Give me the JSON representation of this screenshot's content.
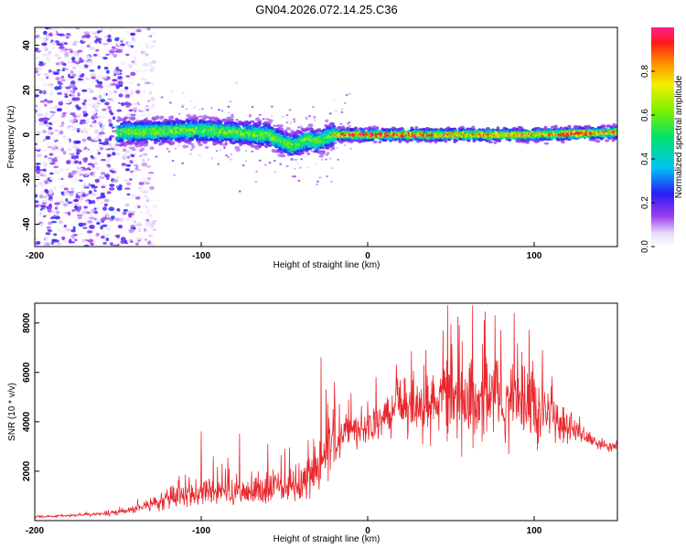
{
  "title": "GN04.2026.072.14.25.C36",
  "colors": {
    "snr_line": "#e8282d",
    "frame": "#000000",
    "background": "#ffffff"
  },
  "chart_data": [
    {
      "type": "heatmap",
      "xlabel": "Height of straight line (km)",
      "ylabel": "Frequency (Hz)",
      "xlim": [
        -200,
        150
      ],
      "ylim": [
        -50,
        48
      ],
      "xticks": [
        -200,
        -100,
        0,
        100
      ],
      "xtick_labels": [
        "-200",
        "-100",
        "0",
        "100"
      ],
      "yticks": [
        -40,
        -20,
        0,
        20,
        40
      ],
      "ytick_labels": [
        "-40",
        "-20",
        "0",
        "20",
        "40"
      ],
      "colorbar": {
        "label": "Normalized spectral amplitude",
        "range": [
          0,
          1
        ],
        "ticks": [
          0.0,
          0.2,
          0.4,
          0.6,
          0.8
        ],
        "tick_labels": [
          "0.0",
          "0.2",
          "0.4",
          "0.6",
          "0.8"
        ],
        "colormap": "rainbow (white-lavender-violet-blue-cyan-green-yellow-orange-red-magenta)"
      },
      "description_series": [
        {
          "name": "broadband noise region",
          "x_range": [
            -200,
            -140
          ],
          "freq_range": [
            -50,
            48
          ],
          "amplitude": [
            0.0,
            0.25
          ]
        },
        {
          "name": "spectral ridge",
          "x_range": [
            -150,
            150
          ],
          "center_freq": [
            [
              -150,
              1
            ],
            [
              -100,
              2
            ],
            [
              -60,
              0
            ],
            [
              -45,
              -5
            ],
            [
              -35,
              -2
            ],
            [
              -30,
              -3
            ],
            [
              -20,
              0
            ],
            [
              0,
              0
            ],
            [
              50,
              0
            ],
            [
              100,
              0
            ],
            [
              150,
              1
            ]
          ],
          "amplitude_range": [
            0.3,
            0.95
          ]
        }
      ]
    },
    {
      "type": "line",
      "xlabel": "Height of straight line (km)",
      "ylabel": "SNR (10 * v/v)",
      "xlim": [
        -200,
        150
      ],
      "ylim": [
        0,
        8800
      ],
      "xticks": [
        -200,
        -100,
        0,
        100
      ],
      "xtick_labels": [
        "-200",
        "-100",
        "0",
        "100"
      ],
      "yticks": [
        2000,
        4000,
        6000,
        8000
      ],
      "ytick_labels": [
        "2000",
        "4000",
        "6000",
        "8000"
      ],
      "series": [
        {
          "name": "SNR",
          "envelope_x": [
            -200,
            -180,
            -160,
            -150,
            -140,
            -130,
            -120,
            -110,
            -100,
            -90,
            -80,
            -70,
            -60,
            -50,
            -40,
            -30,
            -25,
            -20,
            -15,
            -10,
            -5,
            0,
            10,
            20,
            30,
            40,
            50,
            60,
            70,
            80,
            90,
            100,
            110,
            120,
            130,
            140,
            150
          ],
          "mean": [
            150,
            200,
            280,
            350,
            450,
            700,
            900,
            1000,
            1100,
            1350,
            1250,
            1200,
            1300,
            1450,
            1500,
            2200,
            3000,
            3300,
            3400,
            3700,
            3800,
            3800,
            4200,
            4700,
            4600,
            4800,
            5000,
            5100,
            4900,
            4800,
            4600,
            4400,
            4300,
            3800,
            3400,
            3100,
            3000
          ],
          "amplitude": [
            80,
            100,
            150,
            200,
            300,
            500,
            700,
            900,
            1100,
            1300,
            1100,
            1000,
            1100,
            1300,
            1400,
            1800,
            2200,
            1800,
            1500,
            1300,
            1400,
            1400,
            1500,
            1800,
            2200,
            2500,
            3000,
            3100,
            3300,
            3300,
            3100,
            2800,
            2000,
            1200,
            700,
            400,
            300
          ],
          "peaks": [
            [
              -100,
              3600
            ],
            [
              -77,
              3500
            ],
            [
              -60,
              3100
            ],
            [
              -28,
              6600
            ],
            [
              -25,
              5300
            ],
            [
              -20,
              5600
            ],
            [
              5,
              5800
            ],
            [
              35,
              6900
            ],
            [
              48,
              8700
            ],
            [
              55,
              7900
            ],
            [
              63,
              8700
            ],
            [
              70,
              8100
            ],
            [
              80,
              7700
            ],
            [
              88,
              8400
            ],
            [
              97,
              7700
            ],
            [
              105,
              6900
            ]
          ]
        }
      ]
    }
  ]
}
